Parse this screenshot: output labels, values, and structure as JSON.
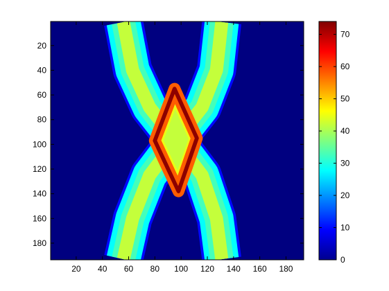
{
  "chart_data": {
    "type": "heatmap",
    "title": "",
    "xlabel": "",
    "ylabel": "",
    "colormap": "jet",
    "grid": false,
    "x_range": [
      1,
      193
    ],
    "y_range": [
      1,
      193
    ],
    "y_direction": "top-to-bottom",
    "x_ticks": [
      20,
      40,
      60,
      80,
      100,
      120,
      140,
      160,
      180
    ],
    "y_ticks": [
      20,
      40,
      60,
      80,
      100,
      120,
      140,
      160,
      180
    ],
    "colorbar": {
      "range": [
        0,
        74
      ],
      "ticks": [
        0,
        10,
        20,
        30,
        40,
        50,
        60,
        70
      ]
    },
    "background_value": 0,
    "structures": [
      {
        "name": "band",
        "shape": "two crossing sinusoidal curved bands forming an X",
        "band_edge_value": 28,
        "band_center_value": 42,
        "paths": [
          {
            "y": [
              1,
              40,
              70,
              97,
              125,
              160,
              193
            ],
            "x_center": [
              56,
              63,
              76,
              96,
              116,
              127,
              131
            ]
          },
          {
            "y": [
              1,
              40,
              70,
              97,
              125,
              160,
              193
            ],
            "x_center": [
              131,
              127,
              116,
              96,
              76,
              63,
              56
            ]
          }
        ]
      },
      {
        "name": "overlap diamond",
        "shape": "diamond outline where bands overlap",
        "vertices_xy": [
          [
            95,
            55
          ],
          [
            112,
            95
          ],
          [
            98,
            138
          ],
          [
            80,
            97
          ]
        ],
        "outline_value": 73,
        "interior_value": 56
      }
    ]
  }
}
